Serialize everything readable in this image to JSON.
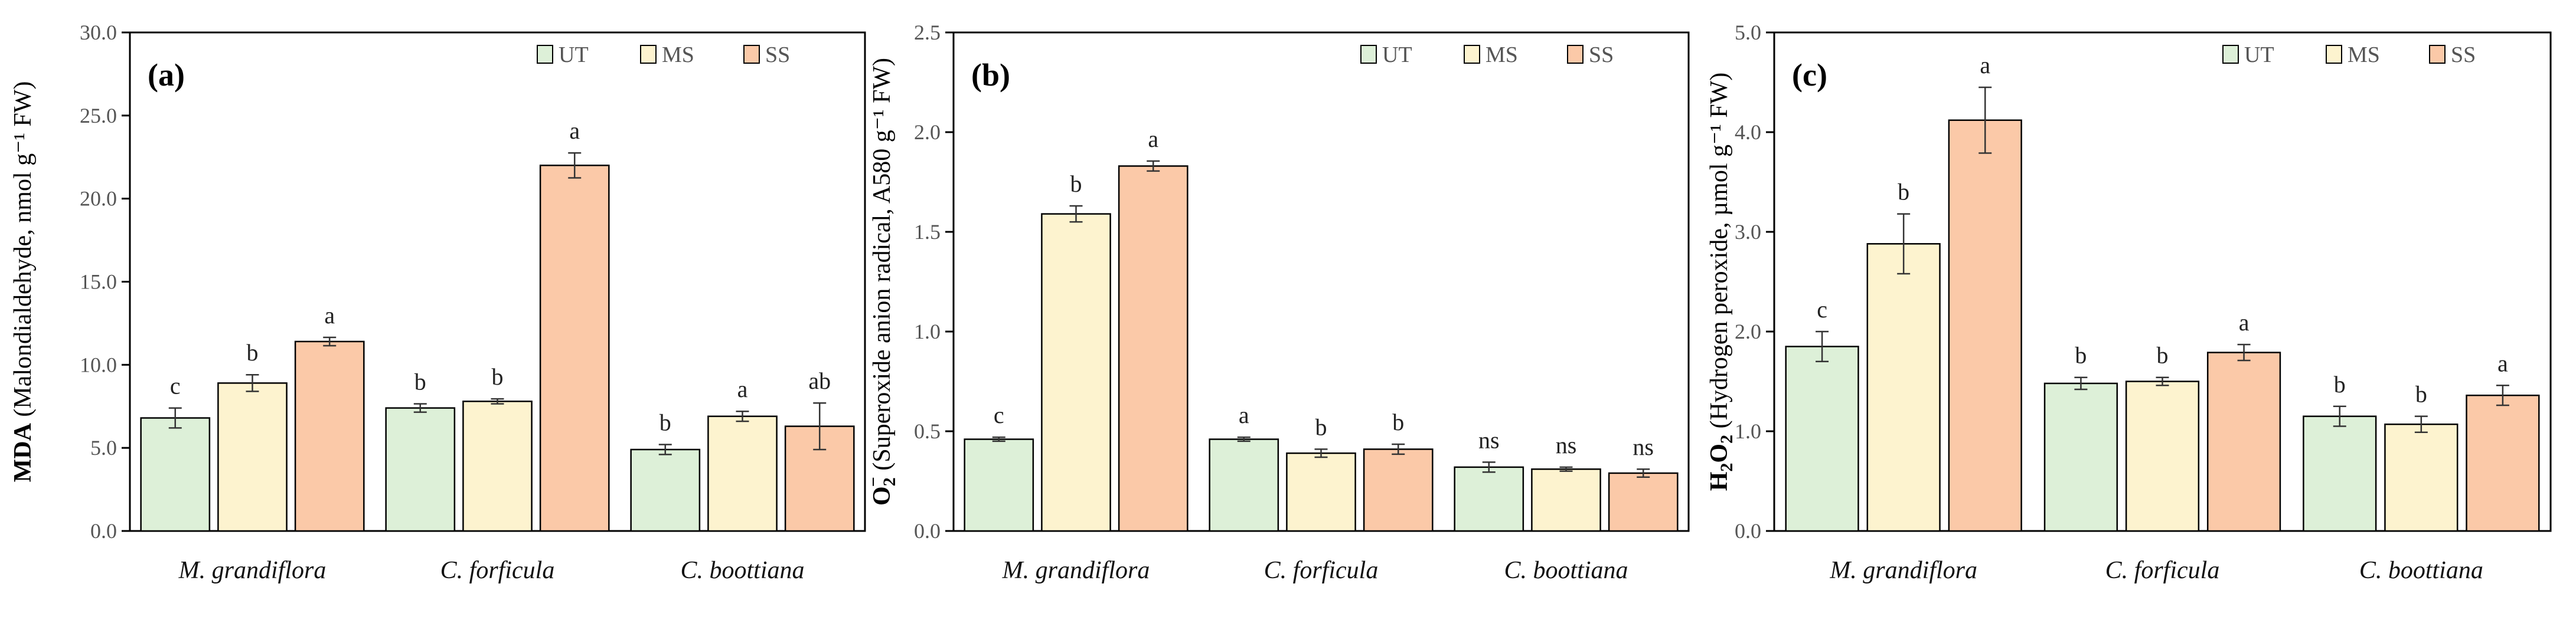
{
  "chart_data": [
    {
      "type": "bar",
      "panel_label": "(a)",
      "ylabel": {
        "main": "MDA",
        "rest": " (Malondialdehyde, nmol g⁻¹ FW)"
      },
      "ylim": [
        0,
        30
      ],
      "yticks": [
        "0.0",
        "5.0",
        "10.0",
        "15.0",
        "20.0",
        "25.0",
        "30.0"
      ],
      "ytick_values": [
        0,
        5,
        10,
        15,
        20,
        25,
        30
      ],
      "categories": [
        "M. grandiflora",
        "C. forficula",
        "C. boottiana"
      ],
      "series": [
        {
          "name": "UT",
          "values": [
            6.8,
            7.4,
            4.9
          ],
          "errors": [
            0.6,
            0.25,
            0.3
          ],
          "sig": [
            "c",
            "b",
            "b"
          ]
        },
        {
          "name": "MS",
          "values": [
            8.9,
            7.8,
            6.9
          ],
          "errors": [
            0.5,
            0.15,
            0.3
          ],
          "sig": [
            "b",
            "b",
            "a"
          ]
        },
        {
          "name": "SS",
          "values": [
            11.4,
            22.0,
            6.3
          ],
          "errors": [
            0.25,
            0.75,
            1.4
          ],
          "sig": [
            "a",
            "a",
            "ab"
          ]
        }
      ],
      "legend": "top-right"
    },
    {
      "type": "bar",
      "panel_label": "(b)",
      "ylabel": {
        "main": "O",
        "sub": "2",
        "sup": "−",
        "rest": " (Superoxide  anion radical, A580 g⁻¹ FW)"
      },
      "ylim": [
        0,
        2.5
      ],
      "yticks": [
        "0.0",
        "0.5",
        "1.0",
        "1.5",
        "2.0",
        "2.5"
      ],
      "ytick_values": [
        0,
        0.5,
        1.0,
        1.5,
        2.0,
        2.5
      ],
      "categories": [
        "M. grandiflora",
        "C. forficula",
        "C. boottiana"
      ],
      "series": [
        {
          "name": "UT",
          "values": [
            0.46,
            0.46,
            0.32
          ],
          "errors": [
            0.01,
            0.01,
            0.025
          ],
          "sig": [
            "c",
            "a",
            "ns"
          ]
        },
        {
          "name": "MS",
          "values": [
            1.59,
            0.39,
            0.31
          ],
          "errors": [
            0.04,
            0.02,
            0.01
          ],
          "sig": [
            "b",
            "b",
            "ns"
          ]
        },
        {
          "name": "SS",
          "values": [
            1.83,
            0.41,
            0.29
          ],
          "errors": [
            0.025,
            0.025,
            0.02
          ],
          "sig": [
            "a",
            "b",
            "ns"
          ]
        }
      ],
      "legend": "top-right"
    },
    {
      "type": "bar",
      "panel_label": "(c)",
      "ylabel": {
        "main": "H",
        "sub": "2",
        "main2": "O",
        "sub2": "2",
        "rest": " (Hydrogen peroxide,  µmol g⁻¹ FW)"
      },
      "ylim": [
        0,
        5
      ],
      "yticks": [
        "0.0",
        "1.0",
        "2.0",
        "3.0",
        "4.0",
        "5.0"
      ],
      "ytick_values": [
        0,
        1,
        2,
        3,
        4,
        5
      ],
      "categories": [
        "M. grandiflora",
        "C. forficula",
        "C. boottiana"
      ],
      "series": [
        {
          "name": "UT",
          "values": [
            1.85,
            1.48,
            1.15
          ],
          "errors": [
            0.15,
            0.06,
            0.1
          ],
          "sig": [
            "c",
            "b",
            "b"
          ]
        },
        {
          "name": "MS",
          "values": [
            2.88,
            1.5,
            1.07
          ],
          "errors": [
            0.3,
            0.04,
            0.08
          ],
          "sig": [
            "b",
            "b",
            "b"
          ]
        },
        {
          "name": "SS",
          "values": [
            4.12,
            1.79,
            1.36
          ],
          "errors": [
            0.33,
            0.08,
            0.1
          ],
          "sig": [
            "a",
            "a",
            "a"
          ]
        }
      ],
      "legend": "top-right"
    }
  ],
  "colors": {
    "UT": "#ddf0d8",
    "MS": "#fdf3cf",
    "SS": "#fbc9a8",
    "bar_stroke": "#000000",
    "axis": "#000000"
  }
}
